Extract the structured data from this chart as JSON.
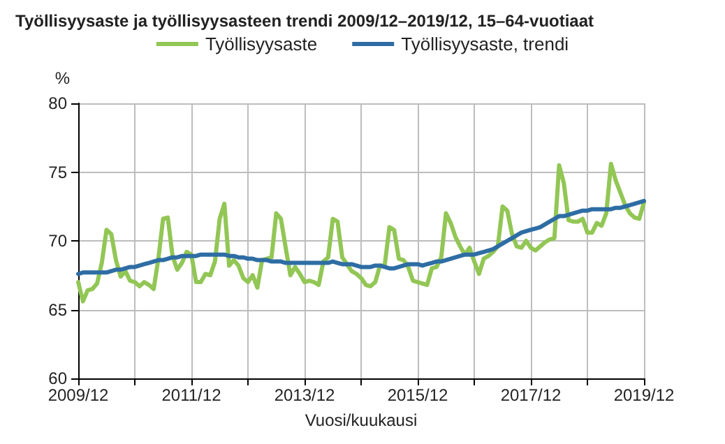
{
  "chart_data": {
    "type": "line",
    "title": "Työllisyysaste ja työllisyysasteen trendi 2009/12–2019/12, 15–64-vuotiaat",
    "xlabel": "Vuosi/kuukausi",
    "ylabel": "%",
    "categories": [
      "2009/12",
      null,
      null,
      null,
      null,
      null,
      null,
      null,
      null,
      null,
      null,
      null,
      null,
      null,
      null,
      null,
      null,
      null,
      null,
      null,
      null,
      null,
      null,
      null,
      "2011/12",
      null,
      null,
      null,
      null,
      null,
      null,
      null,
      null,
      null,
      null,
      null,
      null,
      null,
      null,
      null,
      null,
      null,
      null,
      null,
      null,
      null,
      null,
      null,
      "2013/12",
      null,
      null,
      null,
      null,
      null,
      null,
      null,
      null,
      null,
      null,
      null,
      null,
      null,
      null,
      null,
      null,
      null,
      null,
      null,
      null,
      null,
      null,
      null,
      "2015/12",
      null,
      null,
      null,
      null,
      null,
      null,
      null,
      null,
      null,
      null,
      null,
      null,
      null,
      null,
      null,
      null,
      null,
      null,
      null,
      null,
      null,
      null,
      null,
      "2017/12",
      null,
      null,
      null,
      null,
      null,
      null,
      null,
      null,
      null,
      null,
      null,
      null,
      null,
      null,
      null,
      null,
      null,
      null,
      null,
      null,
      null,
      null,
      null,
      "2019/12"
    ],
    "series": [
      {
        "name": "Työllisyysaste",
        "color": "#92c655",
        "values": [
          67.0,
          65.6,
          66.4,
          66.5,
          66.9,
          68.4,
          70.8,
          70.5,
          68.6,
          67.4,
          67.8,
          67.1,
          67.0,
          66.7,
          67.0,
          66.8,
          66.5,
          68.7,
          71.6,
          71.7,
          68.9,
          67.9,
          68.4,
          69.2,
          69.0,
          67.0,
          67.0,
          67.6,
          67.5,
          68.5,
          71.6,
          72.7,
          68.2,
          68.6,
          68.2,
          67.3,
          67.0,
          67.5,
          66.6,
          68.6,
          68.7,
          68.8,
          72.0,
          71.6,
          69.5,
          67.5,
          68.1,
          67.6,
          67.0,
          67.1,
          67.0,
          66.8,
          68.5,
          68.8,
          71.6,
          71.4,
          68.8,
          68.3,
          67.8,
          67.6,
          67.3,
          66.8,
          66.7,
          67.0,
          68.2,
          68.2,
          71.0,
          70.8,
          68.7,
          68.6,
          68.1,
          67.1,
          67.0,
          66.9,
          66.8,
          68.0,
          68.1,
          68.8,
          72.0,
          71.3,
          70.3,
          69.6,
          69.0,
          69.5,
          68.5,
          67.6,
          68.7,
          68.9,
          69.2,
          69.6,
          72.5,
          72.2,
          70.5,
          69.6,
          69.5,
          70.0,
          69.5,
          69.3,
          69.6,
          69.9,
          70.1,
          70.2,
          75.5,
          74.2,
          71.5,
          71.4,
          71.4,
          71.6,
          70.6,
          70.6,
          71.3,
          71.1,
          72.0,
          75.6,
          74.4,
          73.5,
          72.6,
          72.0,
          71.7,
          71.6,
          72.8
        ]
      },
      {
        "name": "Työllisyysaste, trendi",
        "color": "#2e6da4",
        "values": [
          67.6,
          67.7,
          67.7,
          67.7,
          67.7,
          67.7,
          67.7,
          67.8,
          67.9,
          67.9,
          68.0,
          68.1,
          68.1,
          68.2,
          68.3,
          68.4,
          68.5,
          68.6,
          68.6,
          68.7,
          68.8,
          68.8,
          68.9,
          68.9,
          68.9,
          68.9,
          69.0,
          69.0,
          69.0,
          69.0,
          69.0,
          69.0,
          68.9,
          68.9,
          68.8,
          68.8,
          68.7,
          68.7,
          68.6,
          68.6,
          68.6,
          68.5,
          68.5,
          68.5,
          68.4,
          68.4,
          68.4,
          68.4,
          68.4,
          68.4,
          68.4,
          68.4,
          68.4,
          68.4,
          68.5,
          68.4,
          68.3,
          68.3,
          68.3,
          68.2,
          68.1,
          68.1,
          68.1,
          68.2,
          68.2,
          68.1,
          68.0,
          68.0,
          68.1,
          68.2,
          68.3,
          68.3,
          68.3,
          68.2,
          68.3,
          68.4,
          68.5,
          68.5,
          68.6,
          68.7,
          68.8,
          68.9,
          69.0,
          69.0,
          69.0,
          69.1,
          69.2,
          69.3,
          69.4,
          69.6,
          69.8,
          70.0,
          70.2,
          70.4,
          70.6,
          70.7,
          70.8,
          70.9,
          71.0,
          71.2,
          71.4,
          71.6,
          71.8,
          71.8,
          71.9,
          72.0,
          72.1,
          72.2,
          72.2,
          72.3,
          72.3,
          72.3,
          72.3,
          72.3,
          72.4,
          72.4,
          72.5,
          72.6,
          72.7,
          72.8,
          72.9
        ]
      }
    ],
    "ylim": [
      60,
      80
    ],
    "yticks": [
      60,
      65,
      70,
      75,
      80
    ],
    "grid": true,
    "legend": "top",
    "marker": "none",
    "line_style": "solid"
  }
}
